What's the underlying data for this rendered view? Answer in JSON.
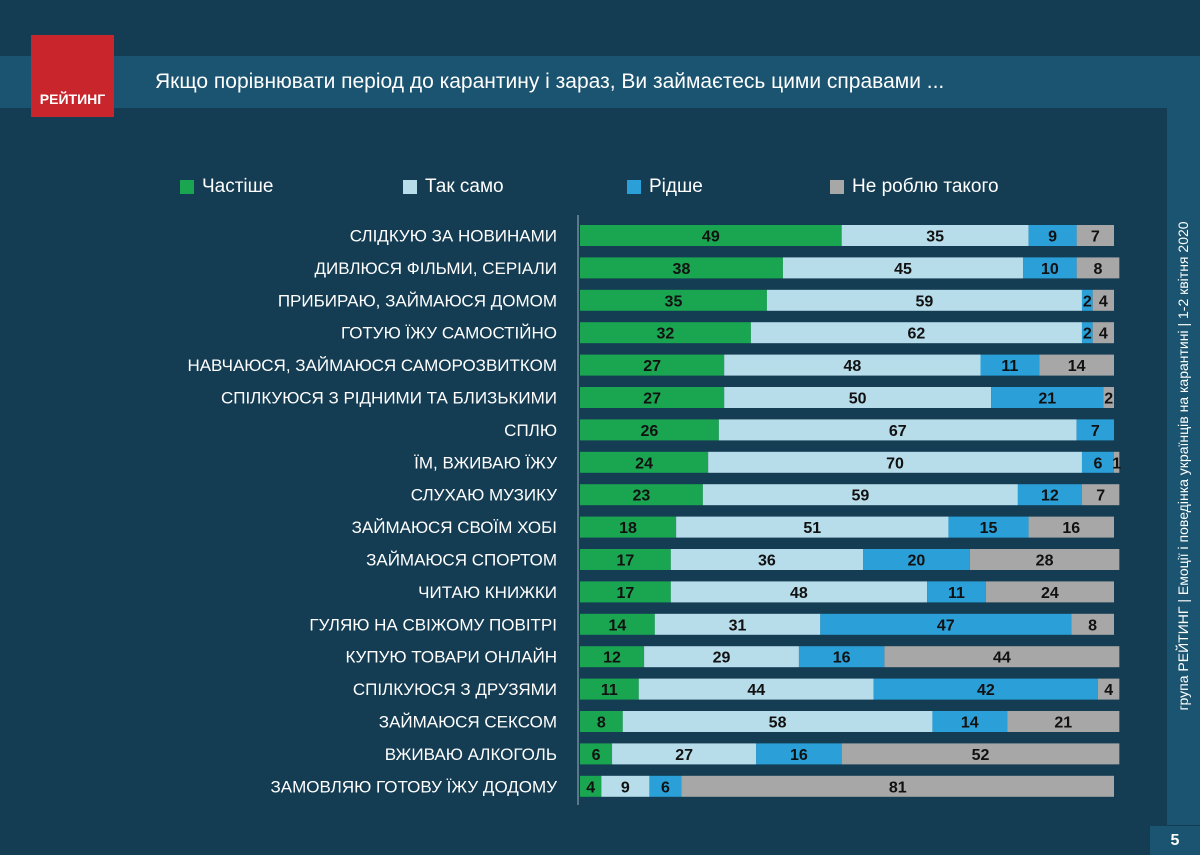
{
  "header": {
    "logo_text": "РЕЙТИНГ",
    "title": "Якщо порівнювати  період до карантину і зараз, Ви займаєтесь цими справами  ..."
  },
  "side_text": "група РЕЙТИНГ  |  Емоції і поведінка українців на карантині  |  1-2 квітня 2020",
  "page_number": "5",
  "colors": {
    "background": "#143c52",
    "band": "#1b5470",
    "logo": "#c9252c"
  },
  "chart_data": {
    "type": "bar",
    "orientation": "horizontal",
    "stacked": true,
    "legend_position": "top",
    "title": "",
    "xlabel": "",
    "ylabel": "",
    "categories": [
      "СЛІДКУЮ ЗА НОВИНАМИ",
      "ДИВЛЮСЯ ФІЛЬМИ, СЕРІАЛИ",
      "ПРИБИРАЮ, ЗАЙМАЮСЯ ДОМОМ",
      "ГОТУЮ ЇЖУ САМОСТІЙНО",
      "НАВЧАЮСЯ, ЗАЙМАЮСЯ САМОРОЗВИТКОМ",
      "СПІЛКУЮСЯ З РІДНИМИ ТА БЛИЗЬКИМИ",
      "СПЛЮ",
      "ЇМ, ВЖИВАЮ ЇЖУ",
      "СЛУХАЮ МУЗИКУ",
      "ЗАЙМАЮСЯ СВОЇМ ХОБІ",
      "ЗАЙМАЮСЯ СПОРТОМ",
      "ЧИТАЮ КНИЖКИ",
      "ГУЛЯЮ НА СВІЖОМУ ПОВІТРІ",
      "КУПУЮ ТОВАРИ ОНЛАЙН",
      "СПІЛКУЮСЯ З ДРУЗЯМИ",
      "ЗАЙМАЮСЯ СЕКСОМ",
      "ВЖИВАЮ АЛКОГОЛЬ",
      "ЗАМОВЛЯЮ ГОТОВУ ЇЖУ ДОДОМУ"
    ],
    "series": [
      {
        "name": "Частіше",
        "color": "#1aa551",
        "values": [
          49,
          38,
          35,
          32,
          27,
          27,
          26,
          24,
          23,
          18,
          17,
          17,
          14,
          12,
          11,
          8,
          6,
          4
        ]
      },
      {
        "name": "Так само",
        "color": "#b7dcea",
        "values": [
          35,
          45,
          59,
          62,
          48,
          50,
          67,
          70,
          59,
          51,
          36,
          48,
          31,
          29,
          44,
          58,
          27,
          9
        ]
      },
      {
        "name": "Рідше",
        "color": "#2a9fd8",
        "values": [
          9,
          10,
          2,
          2,
          11,
          21,
          7,
          6,
          12,
          15,
          20,
          11,
          47,
          16,
          42,
          14,
          16,
          6
        ]
      },
      {
        "name": "Не роблю такого",
        "color": "#a7a7a7",
        "values": [
          7,
          8,
          4,
          4,
          14,
          2,
          0,
          1,
          7,
          16,
          28,
          24,
          8,
          44,
          4,
          21,
          52,
          81
        ]
      }
    ],
    "xlim": [
      0,
      100
    ]
  }
}
